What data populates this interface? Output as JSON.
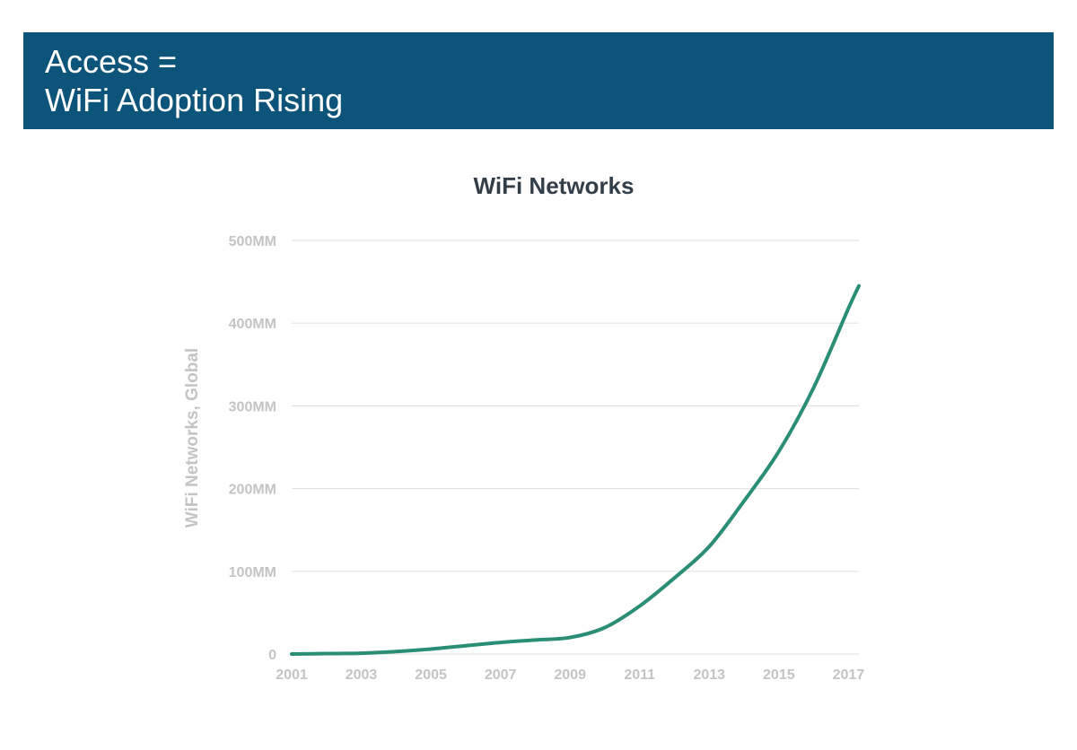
{
  "header": {
    "line1": "Access =",
    "line2": "WiFi Adoption Rising"
  },
  "colors": {
    "header_bg": "#0c5479",
    "series_line": "#2a8d75",
    "gridline": "#e3e3e3",
    "axis_text": "#c4c4c4",
    "title_text": "#333e48"
  },
  "chart_data": {
    "type": "line",
    "title": "WiFi Networks",
    "xlabel": "",
    "ylabel": "WiFi Networks, Global",
    "xlim": [
      2001,
      2017.3
    ],
    "ylim": [
      0,
      500
    ],
    "y_ticks": [
      0,
      100,
      200,
      300,
      400,
      500
    ],
    "y_tick_labels": [
      "0",
      "100MM",
      "200MM",
      "300MM",
      "400MM",
      "500MM"
    ],
    "x_ticks": [
      2001,
      2003,
      2005,
      2007,
      2009,
      2011,
      2013,
      2015,
      2017
    ],
    "x_tick_labels": [
      "2001",
      "2003",
      "2005",
      "2007",
      "2009",
      "2011",
      "2013",
      "2015",
      "2017"
    ],
    "grid": true,
    "legend": "none",
    "series": [
      {
        "name": "WiFi Networks",
        "x": [
          2001,
          2002,
          2003,
          2004,
          2005,
          2006,
          2007,
          2008,
          2009,
          2010,
          2011,
          2012,
          2013,
          2014,
          2015,
          2016,
          2017,
          2017.3
        ],
        "values": [
          0,
          0.5,
          1,
          3,
          6,
          10,
          14,
          17,
          20,
          32,
          58,
          92,
          130,
          185,
          245,
          322,
          418,
          445
        ]
      }
    ]
  }
}
